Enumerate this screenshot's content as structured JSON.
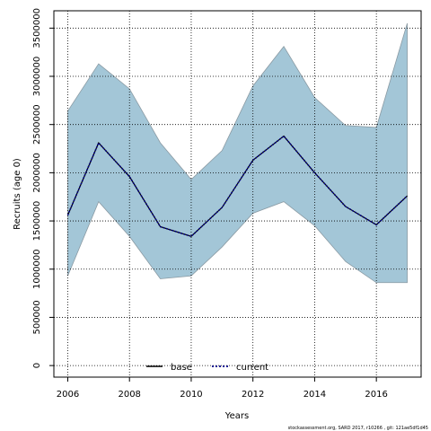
{
  "chart_data": {
    "type": "line",
    "xlabel": "Years",
    "ylabel": "Recruits (age 0)",
    "xlim": [
      2005.55,
      2017.45
    ],
    "ylim": [
      -120000,
      3680000
    ],
    "x_ticks": [
      2006,
      2008,
      2010,
      2012,
      2014,
      2016
    ],
    "y_ticks": [
      0,
      500000,
      1000000,
      1500000,
      2000000,
      2500000,
      3000000,
      3500000
    ],
    "x_tick_labels": [
      "2006",
      "2008",
      "2010",
      "2012",
      "2014",
      "2016"
    ],
    "y_tick_labels": [
      "0",
      "500000",
      "1000000",
      "1500000",
      "2000000",
      "2500000",
      "3000000",
      "3500000"
    ],
    "grid": true,
    "legend_position": "bottom-center",
    "band": {
      "color": "#a3c6d7",
      "edge_color": "#8a9aa3",
      "x": [
        2006,
        2007,
        2008,
        2009,
        2010,
        2011,
        2012,
        2013,
        2014,
        2015,
        2016,
        2017
      ],
      "upper": [
        2640000,
        3130000,
        2870000,
        2310000,
        1930000,
        2230000,
        2900000,
        3310000,
        2780000,
        2490000,
        2470000,
        3550000
      ],
      "lower": [
        930000,
        1700000,
        1340000,
        900000,
        930000,
        1230000,
        1580000,
        1700000,
        1450000,
        1080000,
        860000,
        860000
      ]
    },
    "series": [
      {
        "name": "base",
        "color": "#000000",
        "style": "solid",
        "x": [
          2006,
          2007,
          2008,
          2009,
          2010,
          2011,
          2012,
          2013,
          2014,
          2015,
          2016,
          2017
        ],
        "values": [
          1560000,
          2310000,
          1960000,
          1440000,
          1340000,
          1640000,
          2130000,
          2380000,
          2000000,
          1650000,
          1460000,
          1760000
        ]
      },
      {
        "name": "current",
        "color": "#00008b",
        "style": "dotted",
        "x": [
          2006,
          2007,
          2008,
          2009,
          2010,
          2011,
          2012,
          2013,
          2014,
          2015,
          2016,
          2017
        ],
        "values": [
          1560000,
          2310000,
          1960000,
          1440000,
          1340000,
          1640000,
          2130000,
          2380000,
          2000000,
          1650000,
          1460000,
          1760000
        ]
      }
    ],
    "annotations": [
      "stockassessment.org, SARD 2017, r10266 , git: 121ae5df1d45"
    ]
  }
}
